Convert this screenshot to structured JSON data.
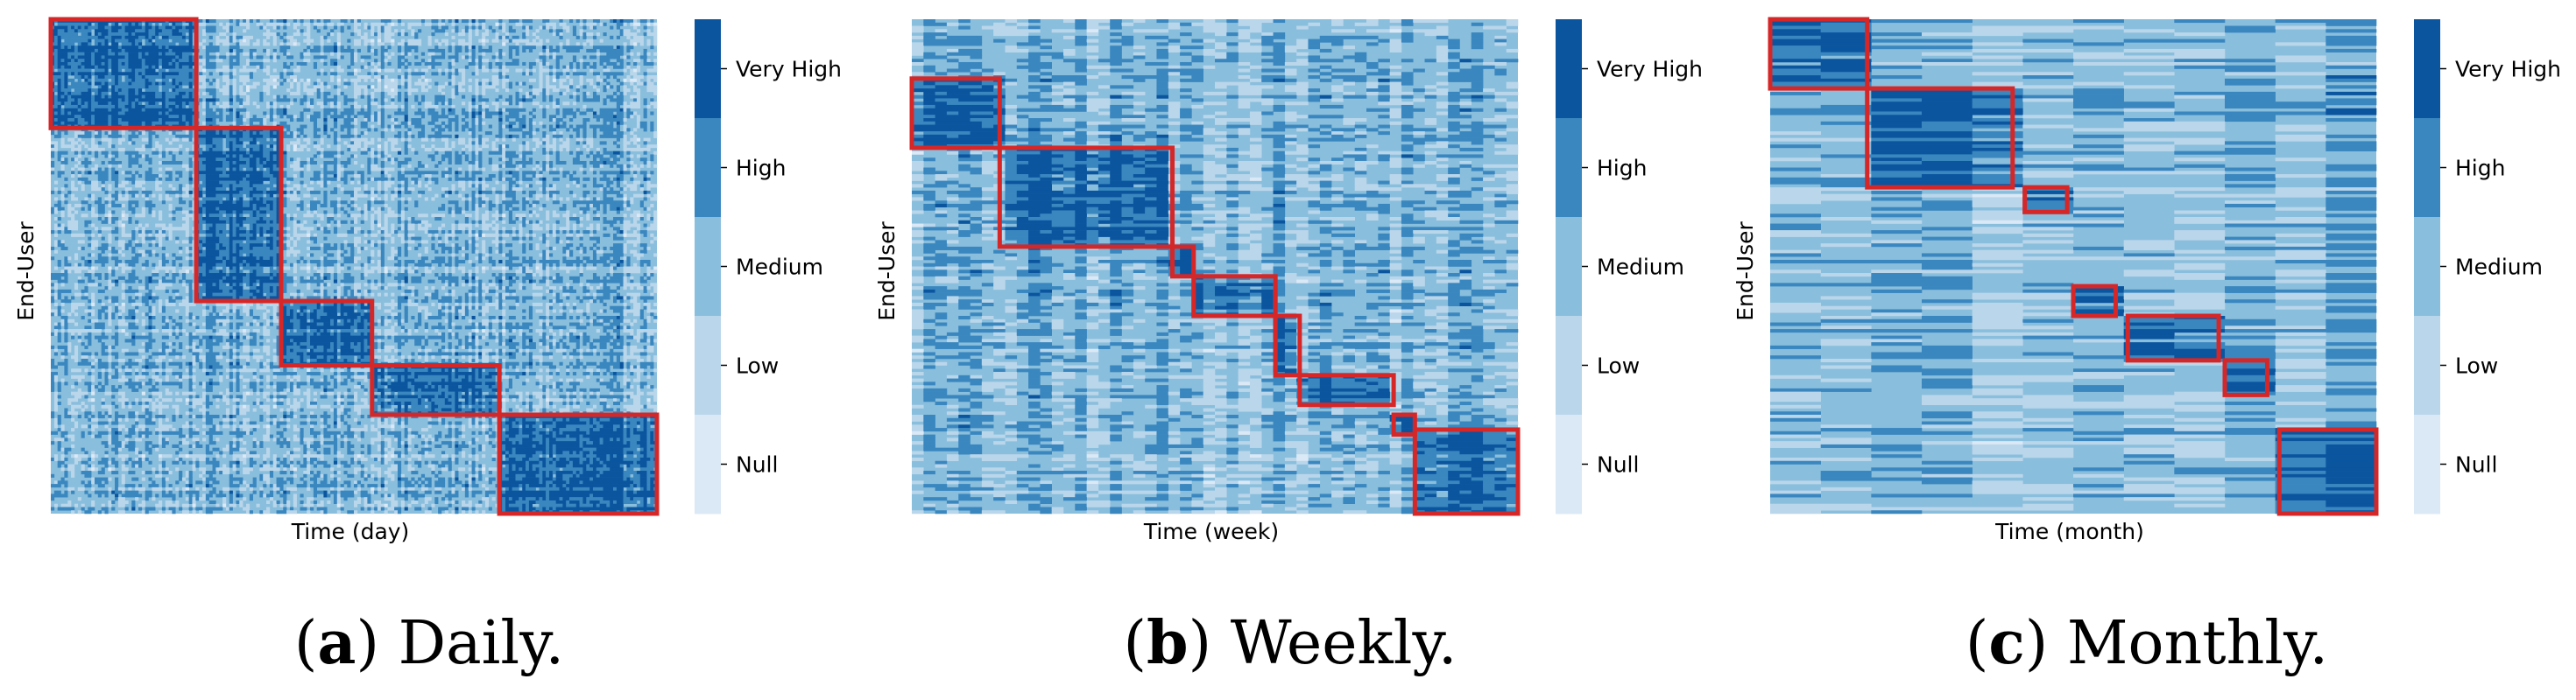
{
  "colors": {
    "levels": [
      "#dbe9f6",
      "#bad6eb",
      "#89bedc",
      "#3a87c0",
      "#0b559f"
    ],
    "box": "#d62728"
  },
  "chart_data": [
    {
      "type": "heatmap",
      "xlabel": "Time (day)",
      "ylabel": "End-User",
      "caption_letter": "(a)",
      "caption_text": " Daily.",
      "colorbar_labels": [
        "Very High",
        "High",
        "Medium",
        "Low",
        "Null"
      ],
      "n_cols": 360,
      "n_rows": 300,
      "cluster_boxes_fraction": [
        {
          "x0": 0.0,
          "x1": 0.24,
          "y0": 0.0,
          "y1": 0.22
        },
        {
          "x0": 0.24,
          "x1": 0.38,
          "y0": 0.22,
          "y1": 0.57
        },
        {
          "x0": 0.38,
          "x1": 0.53,
          "y0": 0.57,
          "y1": 0.7
        },
        {
          "x0": 0.53,
          "x1": 0.74,
          "y0": 0.7,
          "y1": 0.8
        },
        {
          "x0": 0.74,
          "x1": 1.0,
          "y0": 0.8,
          "y1": 1.0
        }
      ]
    },
    {
      "type": "heatmap",
      "xlabel": "Time (week)",
      "ylabel": "End-User",
      "caption_letter": "(b)",
      "caption_text": " Weekly.",
      "colorbar_labels": [
        "Very High",
        "High",
        "Medium",
        "Low",
        "Null"
      ],
      "n_cols": 52,
      "n_rows": 300,
      "cluster_boxes_fraction": [
        {
          "x0": 0.0,
          "x1": 0.145,
          "y0": 0.12,
          "y1": 0.26
        },
        {
          "x0": 0.145,
          "x1": 0.43,
          "y0": 0.26,
          "y1": 0.46
        },
        {
          "x0": 0.43,
          "x1": 0.465,
          "y0": 0.46,
          "y1": 0.52
        },
        {
          "x0": 0.465,
          "x1": 0.6,
          "y0": 0.52,
          "y1": 0.6
        },
        {
          "x0": 0.6,
          "x1": 0.64,
          "y0": 0.6,
          "y1": 0.72
        },
        {
          "x0": 0.64,
          "x1": 0.795,
          "y0": 0.72,
          "y1": 0.78
        },
        {
          "x0": 0.795,
          "x1": 0.83,
          "y0": 0.8,
          "y1": 0.84
        },
        {
          "x0": 0.83,
          "x1": 1.0,
          "y0": 0.83,
          "y1": 1.0
        }
      ]
    },
    {
      "type": "heatmap",
      "xlabel": "Time (month)",
      "ylabel": "End-User",
      "caption_letter": "(c)",
      "caption_text": " Monthly.",
      "colorbar_labels": [
        "Very High",
        "High",
        "Medium",
        "Low",
        "Null"
      ],
      "n_cols": 12,
      "n_rows": 300,
      "cluster_boxes_fraction": [
        {
          "x0": 0.0,
          "x1": 0.16,
          "y0": 0.0,
          "y1": 0.14
        },
        {
          "x0": 0.16,
          "x1": 0.4,
          "y0": 0.14,
          "y1": 0.34
        },
        {
          "x0": 0.42,
          "x1": 0.49,
          "y0": 0.34,
          "y1": 0.39
        },
        {
          "x0": 0.5,
          "x1": 0.57,
          "y0": 0.54,
          "y1": 0.6
        },
        {
          "x0": 0.59,
          "x1": 0.74,
          "y0": 0.6,
          "y1": 0.69
        },
        {
          "x0": 0.75,
          "x1": 0.82,
          "y0": 0.69,
          "y1": 0.76
        },
        {
          "x0": 0.84,
          "x1": 1.0,
          "y0": 0.83,
          "y1": 1.0
        }
      ]
    }
  ]
}
